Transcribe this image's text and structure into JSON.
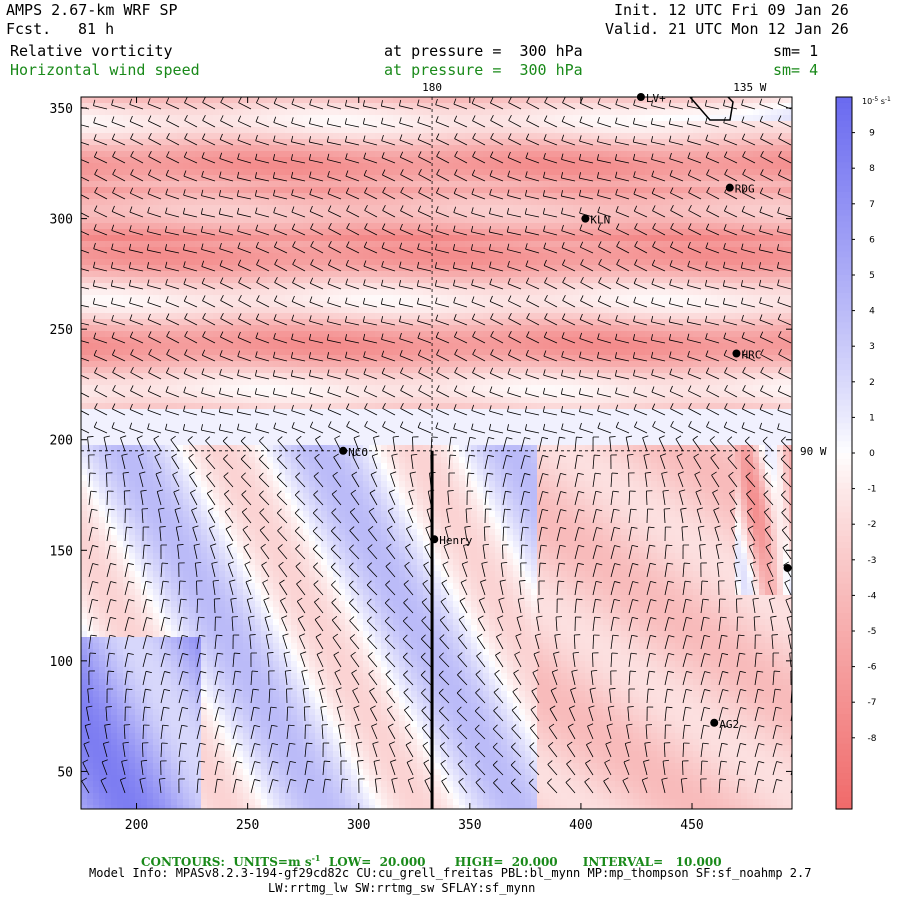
{
  "header": {
    "model": "AMPS 2.67-km WRF SP",
    "fcst_label": "Fcst.",
    "fcst_value": "81 h",
    "init": "Init. 12 UTC Fri 09 Jan 26",
    "valid": "Valid. 21 UTC Mon 12 Jan 26",
    "field1": "Relative vorticity",
    "field1_level": "at pressure =  300 hPa",
    "field1_sm": "sm= 1",
    "field2": "Horizontal wind speed",
    "field2_level": "at pressure =  300 hPa",
    "field2_sm": "sm= 4"
  },
  "colors": {
    "positive": "#6a6af0",
    "negative": "#f06a6a",
    "contour_text": "#1a8a1a"
  },
  "footer": {
    "contours_label": "CONTOURS:",
    "units_label": "UNITS=m s",
    "units_exp": "-1",
    "low": "LOW=  20.000",
    "high": "HIGH=  20.000",
    "interval": "INTERVAL=   10.000",
    "model_info": "Model Info: MPASv8.2.3-194-gf29cd82c CU:cu_grell_freitas PBL:bl_mynn MP:mp_thompson SF:sf_noahmp 2.7",
    "model_info2": "LW:rrtmg_lw SW:rrtmg_sw SFLAY:sf_mynn"
  },
  "chart_data": {
    "type": "heatmap",
    "title": "Relative vorticity / Horizontal wind speed at 300 hPa",
    "xlim": [
      175,
      495
    ],
    "ylim": [
      33,
      355
    ],
    "x_ticks": [
      200,
      250,
      300,
      350,
      400,
      450
    ],
    "y_ticks": [
      50,
      100,
      150,
      200,
      250,
      300,
      350
    ],
    "meridians": [
      {
        "label": "180",
        "x": 333,
        "orientation": "vertical"
      },
      {
        "label": "135 W",
        "x": 476,
        "orientation": "vertical"
      },
      {
        "label": "90 W",
        "y": 195,
        "orientation": "horizontal"
      }
    ],
    "cross_section_line": {
      "x": 333,
      "y_from": 33,
      "y_to": 195
    },
    "stations": [
      {
        "name": "LV+",
        "x": 427,
        "y": 355
      },
      {
        "name": "RDG",
        "x": 467,
        "y": 314
      },
      {
        "name": "KLN",
        "x": 402,
        "y": 300
      },
      {
        "name": "HRC",
        "x": 470,
        "y": 239
      },
      {
        "name": "NCO",
        "x": 293,
        "y": 195
      },
      {
        "name": "Henry",
        "x": 334,
        "y": 155
      },
      {
        "name": "",
        "x": 493,
        "y": 142
      },
      {
        "name": "AG2",
        "x": 460,
        "y": 72
      }
    ],
    "colorbar": {
      "units": "10",
      "units_exp": "-5",
      "units_suffix": "s",
      "units_suffix_exp": "-1",
      "ticks": [
        9,
        8,
        7,
        6,
        5,
        4,
        3,
        2,
        1,
        0,
        -1,
        -2,
        -3,
        -4,
        -5,
        -6,
        -7,
        -8
      ],
      "range": [
        -10,
        10
      ]
    }
  }
}
